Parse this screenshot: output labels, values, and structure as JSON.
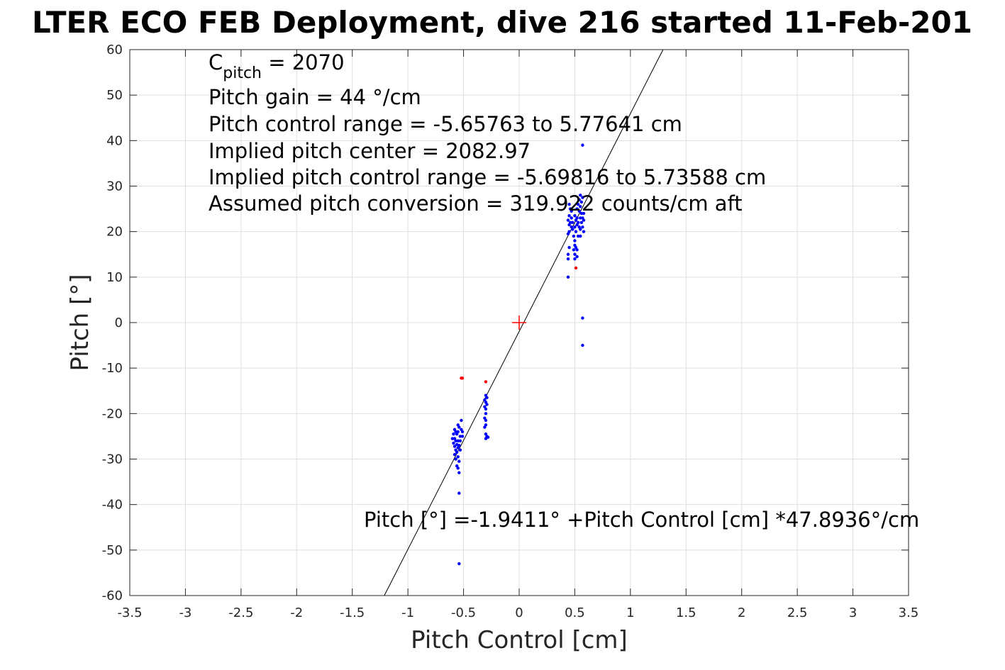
{
  "chart_data": {
    "type": "scatter",
    "title": "LTER ECO FEB Deployment, dive 216 started 11-Feb-201",
    "xlabel": "Pitch Control [cm]",
    "ylabel": "Pitch [°]",
    "xlim": [
      -3.5,
      3.5
    ],
    "ylim": [
      -60,
      60
    ],
    "grid": true,
    "xticks": [
      -3.5,
      -3,
      -2.5,
      -2,
      -1.5,
      -1,
      -0.5,
      0,
      0.5,
      1,
      1.5,
      2,
      2.5,
      3,
      3.5
    ],
    "xtick_labels": [
      "-3.5",
      "-3",
      "-2.5",
      "-2",
      "-1.5",
      "-1",
      "-0.5",
      "0",
      "0.5",
      "1",
      "1.5",
      "2",
      "2.5",
      "3",
      "3.5"
    ],
    "yticks": [
      -60,
      -50,
      -40,
      -30,
      -20,
      -10,
      0,
      10,
      20,
      30,
      40,
      50,
      60
    ],
    "ytick_labels": [
      "-60",
      "-50",
      "-40",
      "-30",
      "-20",
      "-10",
      "0",
      "10",
      "20",
      "30",
      "40",
      "50",
      "60"
    ],
    "annotations": {
      "c_pitch_main": "C",
      "c_pitch_sub": "pitch",
      "c_pitch_value": " = 2070",
      "lines": [
        "Pitch gain = 44 °/cm",
        "Pitch control range = -5.65763 to 5.77641 cm",
        "Implied pitch center = 2082.97",
        "Implied pitch control range = -5.69816 to 5.73588 cm",
        "Assumed pitch conversion = 319.922 counts/cm aft"
      ],
      "fit_label": "Pitch [°] =-1.9411° +Pitch Control [cm] *47.8936°/cm"
    },
    "fit_line": {
      "intercept": -1.9411,
      "slope": 47.8936,
      "color": "#000000"
    },
    "center_marker": {
      "x": 0,
      "y": 0,
      "color": "#ff0000"
    },
    "series": [
      {
        "color": "#0000ff",
        "points": [
          [
            0.57,
            39
          ],
          [
            0.55,
            28
          ],
          [
            0.57,
            27.5
          ],
          [
            0.54,
            27
          ],
          [
            0.56,
            26.5
          ],
          [
            0.53,
            26
          ],
          [
            0.55,
            25.5
          ],
          [
            0.45,
            26
          ],
          [
            0.46,
            25
          ],
          [
            0.47,
            24.5
          ],
          [
            0.52,
            25
          ],
          [
            0.54,
            24.5
          ],
          [
            0.56,
            24
          ],
          [
            0.58,
            24
          ],
          [
            0.45,
            23.5
          ],
          [
            0.47,
            23
          ],
          [
            0.5,
            23.5
          ],
          [
            0.52,
            23
          ],
          [
            0.55,
            23
          ],
          [
            0.57,
            23
          ],
          [
            0.44,
            22.5
          ],
          [
            0.46,
            22
          ],
          [
            0.48,
            22
          ],
          [
            0.51,
            22.5
          ],
          [
            0.53,
            22
          ],
          [
            0.56,
            22
          ],
          [
            0.58,
            22.5
          ],
          [
            0.45,
            21.5
          ],
          [
            0.47,
            21
          ],
          [
            0.5,
            21
          ],
          [
            0.52,
            21.5
          ],
          [
            0.54,
            21
          ],
          [
            0.57,
            21
          ],
          [
            0.45,
            20
          ],
          [
            0.48,
            20.5
          ],
          [
            0.51,
            20
          ],
          [
            0.55,
            20.5
          ],
          [
            0.58,
            20
          ],
          [
            0.44,
            19.5
          ],
          [
            0.49,
            19
          ],
          [
            0.5,
            18
          ],
          [
            0.53,
            19
          ],
          [
            0.55,
            19
          ],
          [
            0.5,
            17
          ],
          [
            0.51,
            16.5
          ],
          [
            0.49,
            16
          ],
          [
            0.52,
            16
          ],
          [
            0.45,
            16.5
          ],
          [
            0.44,
            15
          ],
          [
            0.5,
            15
          ],
          [
            0.52,
            14.5
          ],
          [
            0.44,
            14
          ],
          [
            0.5,
            14
          ],
          [
            0.44,
            10
          ],
          [
            0.57,
            1
          ],
          [
            0.57,
            -5
          ],
          [
            -0.3,
            -16
          ],
          [
            -0.29,
            -16.5
          ],
          [
            -0.31,
            -17
          ],
          [
            -0.3,
            -17.5
          ],
          [
            -0.29,
            -18
          ],
          [
            -0.31,
            -18.5
          ],
          [
            -0.3,
            -19
          ],
          [
            -0.3,
            -20
          ],
          [
            -0.31,
            -21
          ],
          [
            -0.3,
            -21.5
          ],
          [
            -0.3,
            -22.5
          ],
          [
            -0.31,
            -23
          ],
          [
            -0.3,
            -24.5
          ],
          [
            -0.29,
            -25
          ],
          [
            -0.3,
            -25.5
          ],
          [
            -0.28,
            -25.2
          ],
          [
            -0.52,
            -21.5
          ],
          [
            -0.55,
            -22.5
          ],
          [
            -0.54,
            -23
          ],
          [
            -0.52,
            -23.5
          ],
          [
            -0.55,
            -24
          ],
          [
            -0.51,
            -24
          ],
          [
            -0.58,
            -23.5
          ],
          [
            -0.57,
            -24
          ],
          [
            -0.59,
            -24.5
          ],
          [
            -0.56,
            -24.5
          ],
          [
            -0.53,
            -25
          ],
          [
            -0.51,
            -25
          ],
          [
            -0.58,
            -25.5
          ],
          [
            -0.6,
            -25.5
          ],
          [
            -0.55,
            -26
          ],
          [
            -0.57,
            -26
          ],
          [
            -0.53,
            -26
          ],
          [
            -0.59,
            -26.5
          ],
          [
            -0.56,
            -26.8
          ],
          [
            -0.54,
            -27
          ],
          [
            -0.58,
            -27.2
          ],
          [
            -0.55,
            -27.5
          ],
          [
            -0.57,
            -28
          ],
          [
            -0.53,
            -28
          ],
          [
            -0.56,
            -28.5
          ],
          [
            -0.58,
            -29
          ],
          [
            -0.55,
            -29.5
          ],
          [
            -0.57,
            -30
          ],
          [
            -0.54,
            -30.5
          ],
          [
            -0.56,
            -31.5
          ],
          [
            -0.55,
            -32
          ],
          [
            -0.54,
            -33
          ],
          [
            -0.54,
            -37.5
          ],
          [
            -0.54,
            -53
          ]
        ]
      },
      {
        "color": "#ff0000",
        "points": [
          [
            0.51,
            12
          ],
          [
            -0.51,
            -12.2
          ],
          [
            -0.52,
            -12.2
          ],
          [
            -0.3,
            -13
          ]
        ]
      }
    ]
  }
}
